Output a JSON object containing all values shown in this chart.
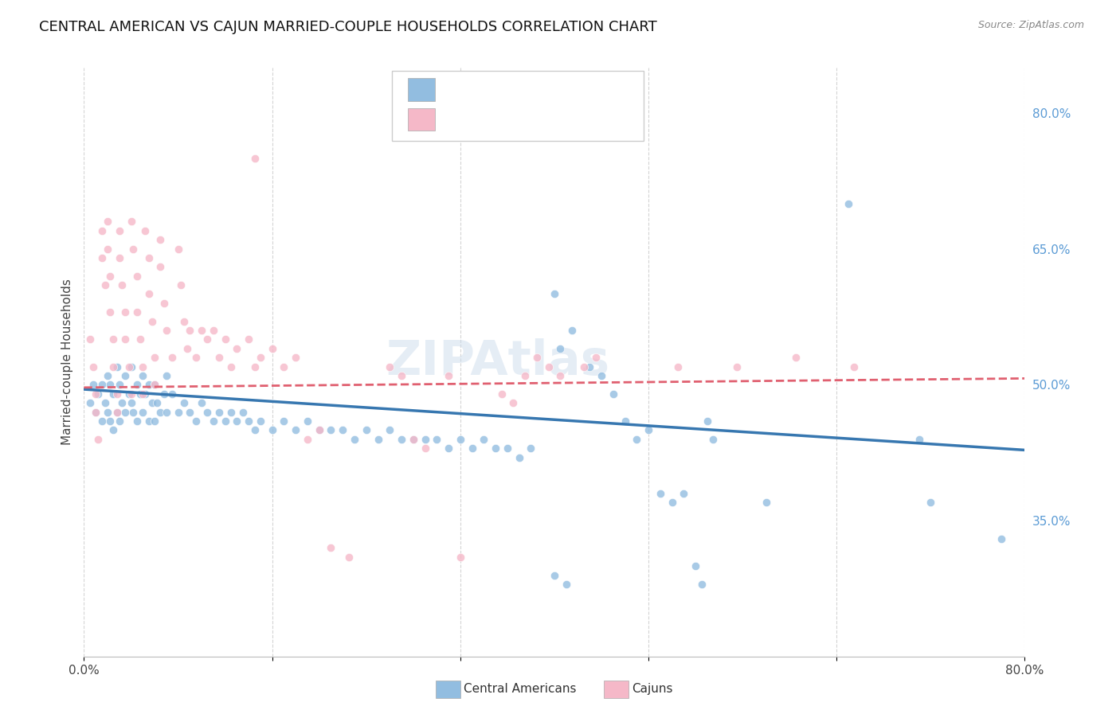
{
  "title": "CENTRAL AMERICAN VS CAJUN MARRIED-COUPLE HOUSEHOLDS CORRELATION CHART",
  "source": "Source: ZipAtlas.com",
  "ylabel": "Married-couple Households",
  "watermark": "ZIPAtlas",
  "x_min": 0.0,
  "x_max": 0.8,
  "y_min": 0.2,
  "y_max": 0.85,
  "y_tick_labels_right": [
    "35.0%",
    "50.0%",
    "65.0%",
    "80.0%"
  ],
  "y_tick_vals_right": [
    0.35,
    0.5,
    0.65,
    0.8
  ],
  "blue_color": "#92bde0",
  "pink_color": "#f5b8c8",
  "blue_line_color": "#3777b0",
  "pink_line_color": "#e06070",
  "legend_label_blue": "Central Americans",
  "legend_label_pink": "Cajuns",
  "blue_scatter": [
    [
      0.005,
      0.48
    ],
    [
      0.008,
      0.5
    ],
    [
      0.01,
      0.47
    ],
    [
      0.012,
      0.49
    ],
    [
      0.015,
      0.46
    ],
    [
      0.015,
      0.5
    ],
    [
      0.018,
      0.48
    ],
    [
      0.02,
      0.51
    ],
    [
      0.02,
      0.47
    ],
    [
      0.022,
      0.5
    ],
    [
      0.022,
      0.46
    ],
    [
      0.025,
      0.49
    ],
    [
      0.025,
      0.45
    ],
    [
      0.028,
      0.52
    ],
    [
      0.028,
      0.47
    ],
    [
      0.03,
      0.5
    ],
    [
      0.03,
      0.46
    ],
    [
      0.032,
      0.48
    ],
    [
      0.035,
      0.51
    ],
    [
      0.035,
      0.47
    ],
    [
      0.038,
      0.49
    ],
    [
      0.04,
      0.52
    ],
    [
      0.04,
      0.48
    ],
    [
      0.042,
      0.47
    ],
    [
      0.045,
      0.5
    ],
    [
      0.045,
      0.46
    ],
    [
      0.048,
      0.49
    ],
    [
      0.05,
      0.51
    ],
    [
      0.05,
      0.47
    ],
    [
      0.052,
      0.49
    ],
    [
      0.055,
      0.5
    ],
    [
      0.055,
      0.46
    ],
    [
      0.058,
      0.48
    ],
    [
      0.06,
      0.5
    ],
    [
      0.06,
      0.46
    ],
    [
      0.062,
      0.48
    ],
    [
      0.065,
      0.47
    ],
    [
      0.068,
      0.49
    ],
    [
      0.07,
      0.51
    ],
    [
      0.07,
      0.47
    ],
    [
      0.075,
      0.49
    ],
    [
      0.08,
      0.47
    ],
    [
      0.085,
      0.48
    ],
    [
      0.09,
      0.47
    ],
    [
      0.095,
      0.46
    ],
    [
      0.1,
      0.48
    ],
    [
      0.105,
      0.47
    ],
    [
      0.11,
      0.46
    ],
    [
      0.115,
      0.47
    ],
    [
      0.12,
      0.46
    ],
    [
      0.125,
      0.47
    ],
    [
      0.13,
      0.46
    ],
    [
      0.135,
      0.47
    ],
    [
      0.14,
      0.46
    ],
    [
      0.145,
      0.45
    ],
    [
      0.15,
      0.46
    ],
    [
      0.16,
      0.45
    ],
    [
      0.17,
      0.46
    ],
    [
      0.18,
      0.45
    ],
    [
      0.19,
      0.46
    ],
    [
      0.2,
      0.45
    ],
    [
      0.21,
      0.45
    ],
    [
      0.22,
      0.45
    ],
    [
      0.23,
      0.44
    ],
    [
      0.24,
      0.45
    ],
    [
      0.25,
      0.44
    ],
    [
      0.26,
      0.45
    ],
    [
      0.27,
      0.44
    ],
    [
      0.28,
      0.44
    ],
    [
      0.29,
      0.44
    ],
    [
      0.3,
      0.44
    ],
    [
      0.31,
      0.43
    ],
    [
      0.32,
      0.44
    ],
    [
      0.33,
      0.43
    ],
    [
      0.34,
      0.44
    ],
    [
      0.35,
      0.43
    ],
    [
      0.36,
      0.43
    ],
    [
      0.37,
      0.42
    ],
    [
      0.38,
      0.43
    ],
    [
      0.4,
      0.6
    ],
    [
      0.405,
      0.54
    ],
    [
      0.415,
      0.56
    ],
    [
      0.43,
      0.52
    ],
    [
      0.44,
      0.51
    ],
    [
      0.45,
      0.49
    ],
    [
      0.46,
      0.46
    ],
    [
      0.47,
      0.44
    ],
    [
      0.48,
      0.45
    ],
    [
      0.49,
      0.38
    ],
    [
      0.5,
      0.37
    ],
    [
      0.51,
      0.38
    ],
    [
      0.52,
      0.3
    ],
    [
      0.525,
      0.28
    ],
    [
      0.53,
      0.46
    ],
    [
      0.535,
      0.44
    ],
    [
      0.58,
      0.37
    ],
    [
      0.4,
      0.29
    ],
    [
      0.41,
      0.28
    ],
    [
      0.65,
      0.7
    ],
    [
      0.71,
      0.44
    ],
    [
      0.72,
      0.37
    ],
    [
      0.78,
      0.33
    ]
  ],
  "pink_scatter": [
    [
      0.005,
      0.55
    ],
    [
      0.008,
      0.52
    ],
    [
      0.01,
      0.49
    ],
    [
      0.01,
      0.47
    ],
    [
      0.012,
      0.44
    ],
    [
      0.015,
      0.67
    ],
    [
      0.015,
      0.64
    ],
    [
      0.018,
      0.61
    ],
    [
      0.02,
      0.68
    ],
    [
      0.02,
      0.65
    ],
    [
      0.022,
      0.62
    ],
    [
      0.022,
      0.58
    ],
    [
      0.025,
      0.55
    ],
    [
      0.025,
      0.52
    ],
    [
      0.028,
      0.49
    ],
    [
      0.028,
      0.47
    ],
    [
      0.03,
      0.67
    ],
    [
      0.03,
      0.64
    ],
    [
      0.032,
      0.61
    ],
    [
      0.035,
      0.58
    ],
    [
      0.035,
      0.55
    ],
    [
      0.038,
      0.52
    ],
    [
      0.04,
      0.49
    ],
    [
      0.04,
      0.68
    ],
    [
      0.042,
      0.65
    ],
    [
      0.045,
      0.62
    ],
    [
      0.045,
      0.58
    ],
    [
      0.048,
      0.55
    ],
    [
      0.05,
      0.52
    ],
    [
      0.05,
      0.49
    ],
    [
      0.052,
      0.67
    ],
    [
      0.055,
      0.64
    ],
    [
      0.055,
      0.6
    ],
    [
      0.058,
      0.57
    ],
    [
      0.06,
      0.53
    ],
    [
      0.06,
      0.5
    ],
    [
      0.065,
      0.66
    ],
    [
      0.065,
      0.63
    ],
    [
      0.068,
      0.59
    ],
    [
      0.07,
      0.56
    ],
    [
      0.075,
      0.53
    ],
    [
      0.08,
      0.65
    ],
    [
      0.082,
      0.61
    ],
    [
      0.085,
      0.57
    ],
    [
      0.088,
      0.54
    ],
    [
      0.09,
      0.56
    ],
    [
      0.095,
      0.53
    ],
    [
      0.1,
      0.56
    ],
    [
      0.105,
      0.55
    ],
    [
      0.11,
      0.56
    ],
    [
      0.115,
      0.53
    ],
    [
      0.12,
      0.55
    ],
    [
      0.125,
      0.52
    ],
    [
      0.13,
      0.54
    ],
    [
      0.14,
      0.55
    ],
    [
      0.145,
      0.52
    ],
    [
      0.15,
      0.53
    ],
    [
      0.16,
      0.54
    ],
    [
      0.17,
      0.52
    ],
    [
      0.18,
      0.53
    ],
    [
      0.145,
      0.75
    ],
    [
      0.19,
      0.44
    ],
    [
      0.2,
      0.45
    ],
    [
      0.21,
      0.32
    ],
    [
      0.225,
      0.31
    ],
    [
      0.26,
      0.52
    ],
    [
      0.27,
      0.51
    ],
    [
      0.28,
      0.44
    ],
    [
      0.29,
      0.43
    ],
    [
      0.31,
      0.51
    ],
    [
      0.32,
      0.31
    ],
    [
      0.355,
      0.49
    ],
    [
      0.365,
      0.48
    ],
    [
      0.375,
      0.51
    ],
    [
      0.385,
      0.53
    ],
    [
      0.395,
      0.52
    ],
    [
      0.405,
      0.51
    ],
    [
      0.425,
      0.52
    ],
    [
      0.435,
      0.53
    ],
    [
      0.505,
      0.52
    ],
    [
      0.555,
      0.52
    ],
    [
      0.605,
      0.53
    ],
    [
      0.655,
      0.52
    ]
  ],
  "blue_trendline": [
    [
      0.0,
      0.495
    ],
    [
      0.8,
      0.428
    ]
  ],
  "pink_trendline": [
    [
      0.0,
      0.497
    ],
    [
      0.8,
      0.507
    ]
  ],
  "grid_color": "#d0d0d0",
  "bg_color": "#ffffff",
  "title_fontsize": 13,
  "axis_label_fontsize": 11,
  "tick_fontsize": 11,
  "scatter_size": 55,
  "scatter_alpha": 0.8
}
